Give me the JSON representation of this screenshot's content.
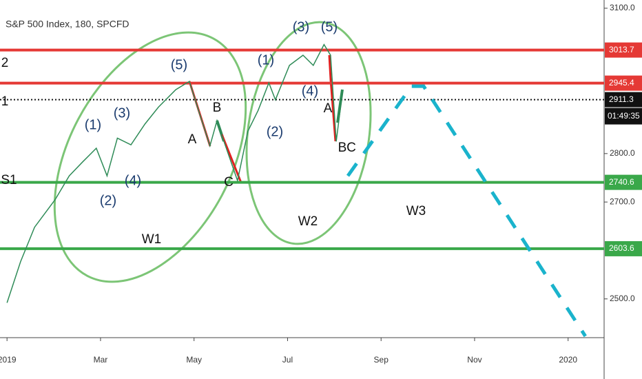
{
  "chart_data": {
    "type": "line",
    "title": "S&P 500 Index, 180, SPCFD",
    "xlim": [
      -0.15,
      12.77
    ],
    "xticks": [
      {
        "value": 0,
        "label": "2019"
      },
      {
        "value": 2,
        "label": "Mar"
      },
      {
        "value": 4,
        "label": "May"
      },
      {
        "value": 6,
        "label": "Jul"
      },
      {
        "value": 8,
        "label": "Sep"
      },
      {
        "value": 10,
        "label": "Nov"
      },
      {
        "value": 12,
        "label": "2020"
      }
    ],
    "ylim": [
      2420,
      3117
    ],
    "yticks": [
      {
        "value": 2500,
        "label": "2500.0"
      },
      {
        "value": 2700,
        "label": "2700.0"
      },
      {
        "value": 2800,
        "label": "2800.0"
      },
      {
        "value": 3100,
        "label": "3100.0"
      }
    ],
    "series": [
      {
        "color": "#2e8b57",
        "x": [
          0,
          0.29,
          0.59,
          1.03,
          1.33,
          1.62,
          1.91,
          2.14,
          2.36,
          2.65,
          2.95,
          3.24,
          3.61,
          3.9,
          4.12,
          4.34,
          4.49,
          4.64,
          4.93,
          5.15,
          5.37,
          5.6,
          5.74,
          6.04,
          6.33,
          6.55,
          6.78,
          6.92,
          7.04,
          7.17
        ],
        "values": [
          2492,
          2577,
          2648,
          2705,
          2754,
          2783,
          2811,
          2754,
          2832,
          2818,
          2861,
          2896,
          2932,
          2949,
          2882,
          2816,
          2868,
          2825,
          2744,
          2846,
          2889,
          2946,
          2911,
          2982,
          3003,
          2982,
          3025,
          3003,
          2825,
          2925
        ]
      },
      {
        "color": "#1ab3cc",
        "dashed": true,
        "x": [
          7.29,
          8.65,
          8.91,
          12.37
        ],
        "values": [
          2754,
          2939,
          2939,
          2423
        ]
      }
    ],
    "levels": [
      {
        "value": 3013.7,
        "color": "#e53935",
        "style": "solid"
      },
      {
        "value": 2945.4,
        "color": "#e53935",
        "style": "solid"
      },
      {
        "value": 2911.3,
        "color": "#111111",
        "style": "dotted"
      },
      {
        "value": 2740.6,
        "color": "#3aa84a",
        "style": "solid"
      },
      {
        "value": 2603.6,
        "color": "#3aa84a",
        "style": "solid"
      }
    ],
    "countdown": "01:49:35",
    "annotations": [
      "(5)",
      "(1)",
      "(3)",
      "(4)",
      "(2)",
      "A",
      "B",
      "C",
      "W1",
      "(1)",
      "(3)",
      "(5)",
      "(4)",
      "(2)",
      "A",
      "B",
      "C",
      "W2",
      "W3",
      "2",
      "1",
      "S1"
    ]
  }
}
